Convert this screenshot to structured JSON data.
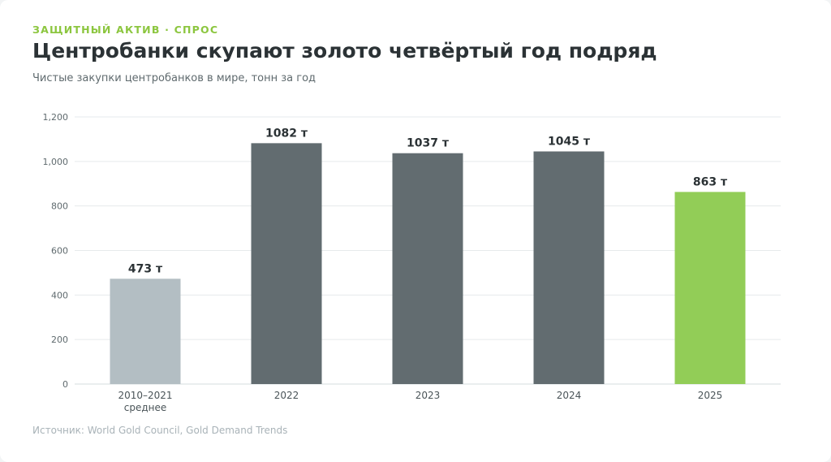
{
  "kicker": "ЗАЩИТНЫЙ АКТИВ · СПРОС",
  "title": "Центробанки скупают золото четвёртый год подряд",
  "subtitle": "Чистые закупки центробанков в мире, тонн за год",
  "source": "Источник: World Gold Council, Gold Demand Trends",
  "chart_data": {
    "type": "bar",
    "categories": [
      [
        "2010–2021",
        "среднее"
      ],
      [
        "2022"
      ],
      [
        "2023"
      ],
      [
        "2024"
      ],
      [
        "2025"
      ]
    ],
    "values": [
      473,
      1082,
      1037,
      1045,
      863
    ],
    "value_labels": [
      "473 т",
      "1082 т",
      "1037 т",
      "1045 т",
      "863 т"
    ],
    "bar_colors": [
      "#b3bec3",
      "#626c70",
      "#626c70",
      "#626c70",
      "#92cd57"
    ],
    "ylim": [
      0,
      1200
    ],
    "yticks": [
      0,
      200,
      400,
      600,
      800,
      1000,
      1200
    ],
    "ytick_labels": [
      "0",
      "200",
      "400",
      "600",
      "800",
      "1,000",
      "1,200"
    ],
    "grid": true,
    "xlabel": "",
    "ylabel": ""
  }
}
